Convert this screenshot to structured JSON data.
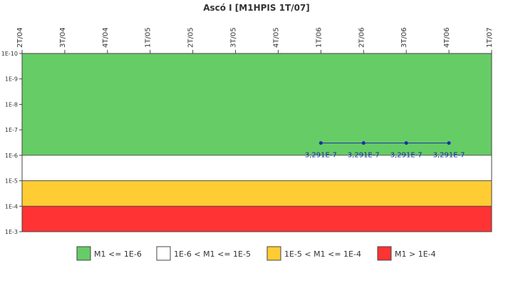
{
  "chart_data": {
    "type": "line",
    "title": "Ascó I [M1HPIS 1T/07]",
    "categories": [
      "2T/04",
      "3T/04",
      "4T/04",
      "1T/05",
      "2T/05",
      "3T/05",
      "4T/05",
      "1T/06",
      "2T/06",
      "3T/06",
      "4T/06",
      "1T/07"
    ],
    "y_axis": {
      "scale": "log",
      "reversed": true,
      "tick_labels": [
        "1E-10",
        "1E-9",
        "1E-8",
        "1E-7",
        "1E-6",
        "1E-5",
        "1E-4",
        "1E-3"
      ],
      "range": [
        "1E-10",
        "1E-3"
      ]
    },
    "series": [
      {
        "x": [
          "1T/06",
          "2T/06",
          "3T/06",
          "4T/06"
        ],
        "values": [
          3.291e-07,
          3.291e-07,
          3.291e-07,
          3.291e-07
        ],
        "labels": [
          "3,291E-7",
          "3,291E-7",
          "3,291E-7",
          "3,291E-7"
        ],
        "color": "#1a2ea8"
      }
    ],
    "bands": [
      {
        "label": "M1 <= 1E-6",
        "from": 1e-10,
        "to": 1e-06,
        "color": "#66cc66"
      },
      {
        "label": "1E-6 < M1 <= 1E-5",
        "from": 1e-06,
        "to": 1e-05,
        "color": "#ffffff"
      },
      {
        "label": "1E-5 < M1 <= 1E-4",
        "from": 1e-05,
        "to": 0.0001,
        "color": "#ffcc33"
      },
      {
        "label": "M1 > 1E-4",
        "from": 0.0001,
        "to": 0.001,
        "color": "#ff3333"
      }
    ],
    "legend_position": "bottom",
    "grid": false
  }
}
